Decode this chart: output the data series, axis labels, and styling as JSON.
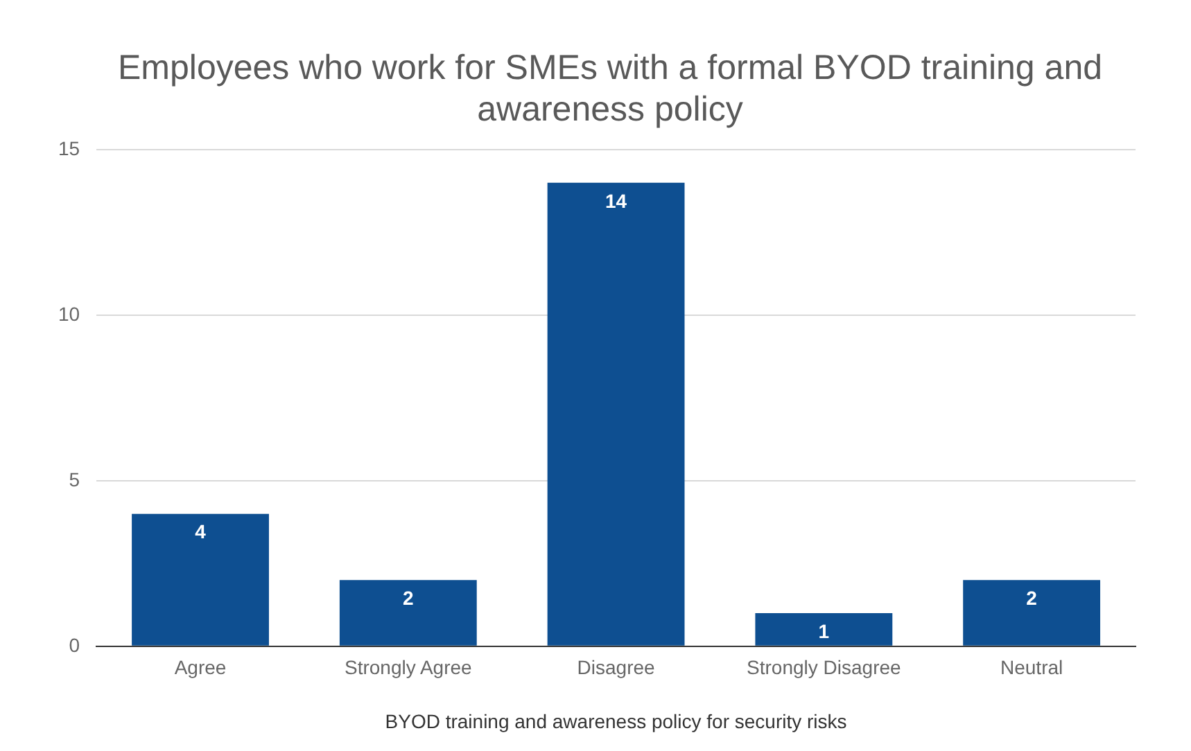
{
  "chart_data": {
    "type": "bar",
    "title": "Employees who work for SMEs with a formal BYOD training and awareness policy",
    "xlabel": "BYOD training and awareness policy for security risks",
    "categories": [
      "Agree",
      "Strongly Agree",
      "Disagree",
      "Strongly Disagree",
      "Neutral"
    ],
    "values": [
      4,
      2,
      14,
      1,
      2
    ],
    "color": "#0e4f91",
    "ylim": [
      0,
      15
    ],
    "yticks": [
      0,
      5,
      10,
      15
    ],
    "grid": "y",
    "data_labels": true,
    "legend": false
  }
}
